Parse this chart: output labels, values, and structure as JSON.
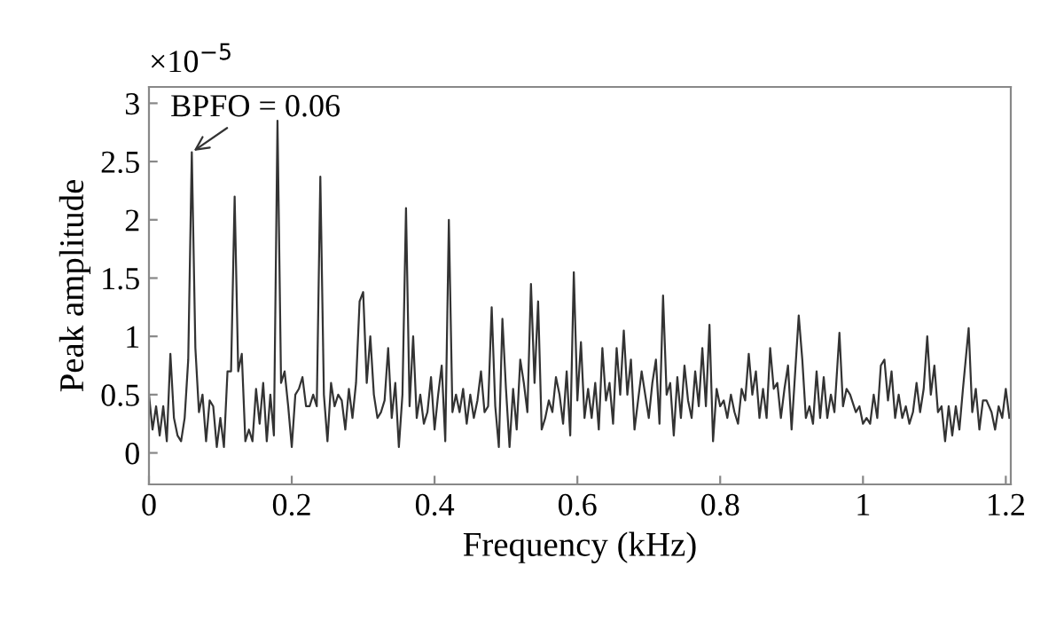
{
  "chart_data": {
    "type": "line",
    "xlabel": "Frequency (kHz)",
    "ylabel": "Peak amplitude",
    "annotations": [
      {
        "text": "BPFO = 0.06",
        "x": 0.06,
        "y": 2.58
      },
      "×10$^{−5}$"
    ],
    "xlim": [
      0,
      1.207
    ],
    "ylim": [
      -0.27,
      3.14
    ],
    "xticks": [
      0,
      0.2,
      0.4,
      0.6,
      0.8,
      1,
      1.2
    ],
    "yticks": [
      0,
      0.5,
      1,
      1.5,
      2,
      2.5,
      3
    ],
    "grid": false,
    "legend": false,
    "marker": "none",
    "line_style": "solid",
    "series": [
      {
        "color": "#333333",
        "x": [
          0,
          0.005,
          0.01,
          0.015,
          0.02,
          0.025,
          0.03,
          0.035,
          0.04,
          0.045,
          0.05,
          0.055,
          0.06,
          0.065,
          0.07,
          0.075,
          0.08,
          0.085,
          0.09,
          0.095,
          0.1,
          0.105,
          0.11,
          0.115,
          0.12,
          0.125,
          0.13,
          0.135,
          0.14,
          0.145,
          0.15,
          0.155,
          0.16,
          0.165,
          0.17,
          0.175,
          0.18,
          0.185,
          0.19,
          0.195,
          0.2,
          0.205,
          0.21,
          0.215,
          0.22,
          0.225,
          0.23,
          0.235,
          0.24,
          0.245,
          0.25,
          0.255,
          0.26,
          0.265,
          0.27,
          0.275,
          0.28,
          0.285,
          0.29,
          0.295,
          0.3,
          0.305,
          0.31,
          0.315,
          0.32,
          0.325,
          0.33,
          0.335,
          0.34,
          0.345,
          0.35,
          0.355,
          0.36,
          0.365,
          0.37,
          0.375,
          0.38,
          0.385,
          0.39,
          0.395,
          0.4,
          0.405,
          0.41,
          0.415,
          0.42,
          0.425,
          0.43,
          0.435,
          0.44,
          0.445,
          0.45,
          0.455,
          0.46,
          0.465,
          0.47,
          0.475,
          0.48,
          0.485,
          0.49,
          0.495,
          0.5,
          0.505,
          0.51,
          0.515,
          0.52,
          0.525,
          0.53,
          0.535,
          0.54,
          0.545,
          0.55,
          0.555,
          0.56,
          0.565,
          0.57,
          0.575,
          0.58,
          0.585,
          0.59,
          0.595,
          0.6,
          0.605,
          0.61,
          0.615,
          0.62,
          0.625,
          0.63,
          0.635,
          0.64,
          0.645,
          0.65,
          0.655,
          0.66,
          0.665,
          0.67,
          0.675,
          0.68,
          0.685,
          0.69,
          0.695,
          0.7,
          0.705,
          0.71,
          0.715,
          0.72,
          0.725,
          0.73,
          0.735,
          0.74,
          0.745,
          0.75,
          0.755,
          0.76,
          0.765,
          0.77,
          0.775,
          0.78,
          0.785,
          0.79,
          0.795,
          0.8,
          0.805,
          0.81,
          0.815,
          0.82,
          0.825,
          0.83,
          0.835,
          0.84,
          0.845,
          0.85,
          0.855,
          0.86,
          0.865,
          0.87,
          0.875,
          0.88,
          0.885,
          0.89,
          0.895,
          0.9,
          0.91,
          0.915,
          0.92,
          0.925,
          0.93,
          0.935,
          0.94,
          0.945,
          0.95,
          0.955,
          0.96,
          0.967,
          0.972,
          0.977,
          0.982,
          0.99,
          0.995,
          1.0,
          1.005,
          1.01,
          1.015,
          1.02,
          1.025,
          1.03,
          1.035,
          1.04,
          1.045,
          1.05,
          1.055,
          1.06,
          1.065,
          1.07,
          1.075,
          1.08,
          1.085,
          1.09,
          1.095,
          1.1,
          1.105,
          1.11,
          1.115,
          1.12,
          1.125,
          1.13,
          1.135,
          1.14,
          1.148,
          1.153,
          1.158,
          1.163,
          1.168,
          1.173,
          1.18,
          1.185,
          1.19,
          1.195,
          1.2,
          1.205
        ],
        "values": [
          0.5,
          0.2,
          0.4,
          0.15,
          0.4,
          0.1,
          0.85,
          0.3,
          0.15,
          0.1,
          0.3,
          0.8,
          2.58,
          0.9,
          0.35,
          0.5,
          0.1,
          0.45,
          0.4,
          0.05,
          0.3,
          0.05,
          0.7,
          0.7,
          2.2,
          0.7,
          0.85,
          0.1,
          0.2,
          0.1,
          0.55,
          0.25,
          0.6,
          0.1,
          0.5,
          0.15,
          2.85,
          0.6,
          0.7,
          0.4,
          0.05,
          0.5,
          0.55,
          0.65,
          0.4,
          0.4,
          0.5,
          0.4,
          2.37,
          0.5,
          0.1,
          0.6,
          0.4,
          0.5,
          0.45,
          0.2,
          0.55,
          0.3,
          0.6,
          1.3,
          1.38,
          0.6,
          1.0,
          0.5,
          0.3,
          0.35,
          0.45,
          0.9,
          0.3,
          0.6,
          0.05,
          0.5,
          2.1,
          0.4,
          1.0,
          0.3,
          0.5,
          0.25,
          0.35,
          0.65,
          0.2,
          0.5,
          0.75,
          0.1,
          2.0,
          0.35,
          0.5,
          0.35,
          0.55,
          0.25,
          0.5,
          0.3,
          0.45,
          0.7,
          0.35,
          0.4,
          1.25,
          0.4,
          0.05,
          1.15,
          0.55,
          0.05,
          0.55,
          0.2,
          0.8,
          0.6,
          0.35,
          1.45,
          0.6,
          1.3,
          0.2,
          0.3,
          0.45,
          0.35,
          0.65,
          0.5,
          0.25,
          0.7,
          0.15,
          1.55,
          0.45,
          0.95,
          0.3,
          0.55,
          0.3,
          0.6,
          0.2,
          0.9,
          0.45,
          0.6,
          0.25,
          0.9,
          0.5,
          1.05,
          0.5,
          0.8,
          0.2,
          0.45,
          0.7,
          0.5,
          0.3,
          0.6,
          0.8,
          0.25,
          1.35,
          0.5,
          0.6,
          0.15,
          0.65,
          0.3,
          0.75,
          0.45,
          0.3,
          0.7,
          0.4,
          0.9,
          0.4,
          1.1,
          0.1,
          0.55,
          0.4,
          0.45,
          0.3,
          0.5,
          0.35,
          0.25,
          0.55,
          0.45,
          0.85,
          0.5,
          0.7,
          0.3,
          0.55,
          0.3,
          0.9,
          0.55,
          0.6,
          0.3,
          0.55,
          0.75,
          0.2,
          1.18,
          0.8,
          0.3,
          0.4,
          0.25,
          0.7,
          0.3,
          0.65,
          0.3,
          0.5,
          0.35,
          1.03,
          0.4,
          0.55,
          0.5,
          0.35,
          0.4,
          0.25,
          0.3,
          0.25,
          0.5,
          0.3,
          0.75,
          0.8,
          0.45,
          0.7,
          0.3,
          0.5,
          0.3,
          0.4,
          0.25,
          0.35,
          0.6,
          0.35,
          0.55,
          1.0,
          0.5,
          0.75,
          0.35,
          0.4,
          0.1,
          0.4,
          0.15,
          0.4,
          0.2,
          0.55,
          1.07,
          0.35,
          0.55,
          0.2,
          0.45,
          0.45,
          0.35,
          0.2,
          0.4,
          0.3,
          0.55,
          0.3
        ]
      }
    ]
  }
}
